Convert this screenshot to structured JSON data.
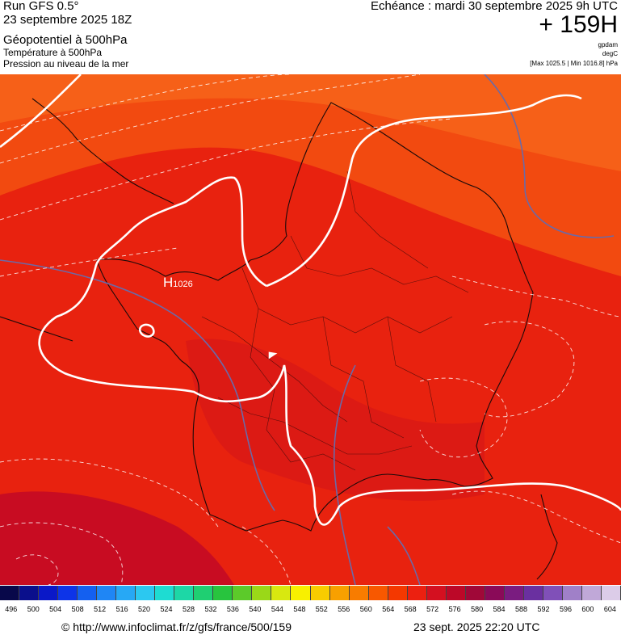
{
  "header": {
    "run": "Run GFS 0.5°",
    "run_date": "23 septembre 2025 18Z",
    "field_main": "Géopotentiel à 500hPa",
    "field_temp": "Température à 500hPa",
    "field_pressure": "Pression au niveau de la mer",
    "echeance": "Echéance : mardi 30 septembre 2025 9h UTC",
    "lead_time": "+ 159H",
    "unit_1": "gpdam",
    "unit_2": "degC",
    "pressure_range": "[Max 1025.5 | Min 1016.8] hPa"
  },
  "map": {
    "high_letter": "H",
    "high_value": "1026"
  },
  "colorbar": {
    "labels": [
      "496",
      "500",
      "504",
      "508",
      "512",
      "516",
      "520",
      "524",
      "528",
      "532",
      "536",
      "540",
      "544",
      "548",
      "552",
      "556",
      "560",
      "564",
      "568",
      "572",
      "576",
      "580",
      "584",
      "588",
      "592",
      "596",
      "600",
      "604"
    ],
    "colors": [
      "#08084a",
      "#0a0f8c",
      "#0a18c8",
      "#0d34e8",
      "#1460f0",
      "#1f86f5",
      "#27a8f5",
      "#2cc8f0",
      "#1edcd2",
      "#1dd7a6",
      "#1fcf72",
      "#28c43e",
      "#5cca2a",
      "#9ad818",
      "#d8e810",
      "#f8f000",
      "#f8cc00",
      "#f8a000",
      "#f87c00",
      "#f85800",
      "#f43800",
      "#ec2010",
      "#d41020",
      "#bc0828",
      "#a00838",
      "#8a0a58",
      "#7a1c80",
      "#6a30a0",
      "#8050b8",
      "#a080c8",
      "#c0a8d8",
      "#dccce8"
    ]
  },
  "footer": {
    "url": "© http://www.infoclimat.fr/z/gfs/france/500/159",
    "date": "23 sept. 2025 22:20 UTC"
  },
  "colors": {
    "field_orange": "#f24a10",
    "field_red": "#e8220f",
    "field_darkred": "#c80c22",
    "isohypse": "#ffffff",
    "isobar": "#6a6aa8"
  }
}
